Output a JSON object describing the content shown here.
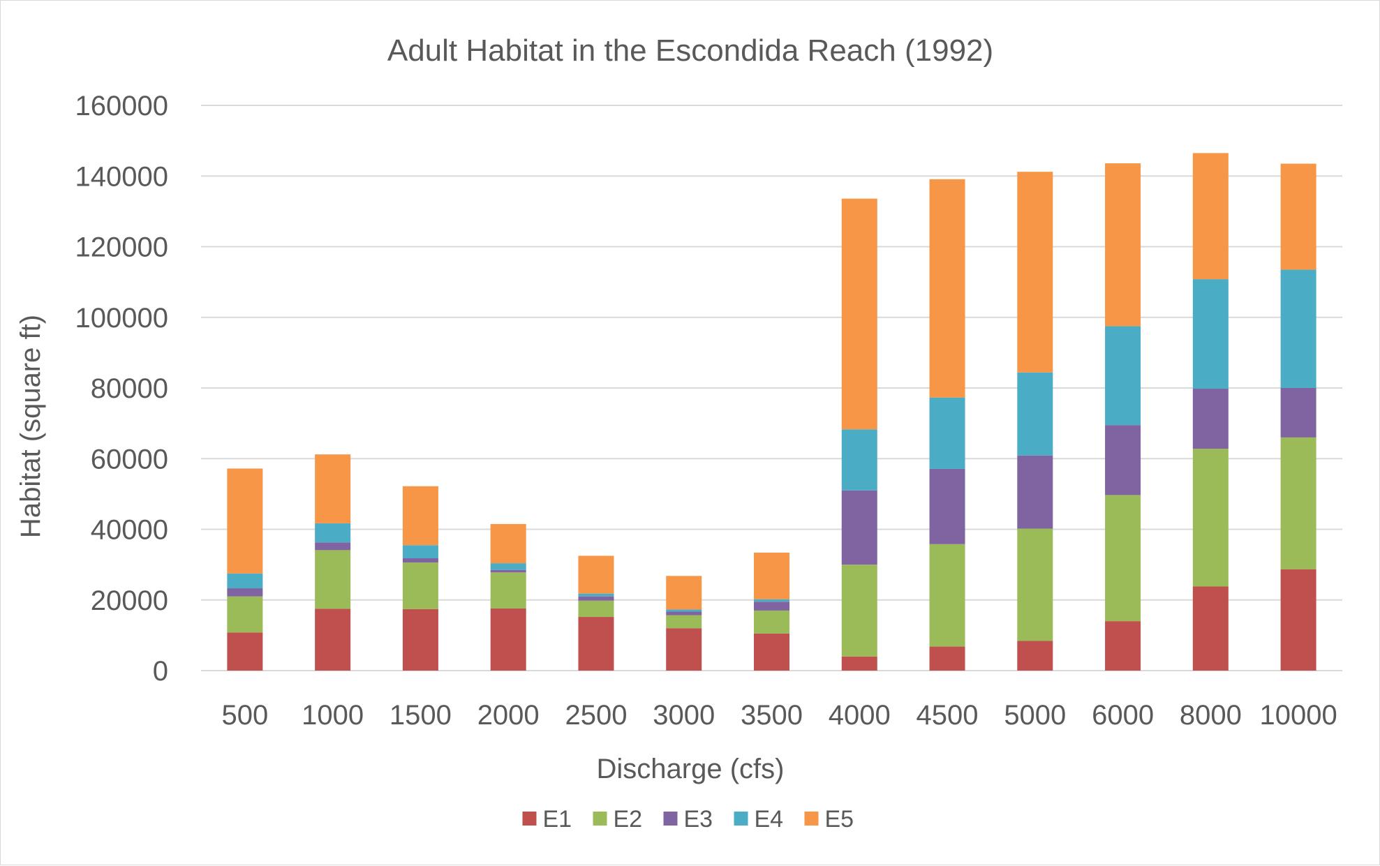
{
  "chart_data": {
    "type": "bar",
    "stacked": true,
    "title": "Adult Habitat in the Escondida Reach (1992)",
    "xlabel": "Discharge (cfs)",
    "ylabel": "Habitat (square ft)",
    "ylim": [
      0,
      160000
    ],
    "yticks": [
      "0",
      "20000",
      "40000",
      "60000",
      "80000",
      "100000",
      "120000",
      "140000",
      "160000"
    ],
    "grid": true,
    "legend_position": "bottom",
    "categories": [
      "500",
      "1000",
      "1500",
      "2000",
      "2500",
      "3000",
      "3500",
      "4000",
      "4500",
      "5000",
      "6000",
      "8000",
      "10000"
    ],
    "series": [
      {
        "name": "E1",
        "color": "#c0504d",
        "values": [
          10800,
          17500,
          17400,
          17600,
          15200,
          12000,
          10500,
          4000,
          6800,
          8400,
          14000,
          23800,
          28700
        ]
      },
      {
        "name": "E2",
        "color": "#9bbb59",
        "values": [
          10200,
          16600,
          13200,
          10200,
          4600,
          3700,
          6500,
          26000,
          29000,
          31800,
          35700,
          39000,
          37300
        ]
      },
      {
        "name": "E3",
        "color": "#8064a2",
        "values": [
          2300,
          2200,
          1200,
          700,
          1200,
          1000,
          2500,
          21000,
          21300,
          20700,
          19800,
          17000,
          14000
        ]
      },
      {
        "name": "E4",
        "color": "#4bacc6",
        "values": [
          4200,
          5400,
          3700,
          1900,
          800,
          600,
          700,
          17300,
          20200,
          23500,
          28000,
          31000,
          33500
        ]
      },
      {
        "name": "E5",
        "color": "#f79646",
        "values": [
          29700,
          19500,
          16700,
          11100,
          10700,
          9500,
          13200,
          65300,
          61800,
          56800,
          46100,
          35700,
          30000
        ]
      }
    ]
  }
}
